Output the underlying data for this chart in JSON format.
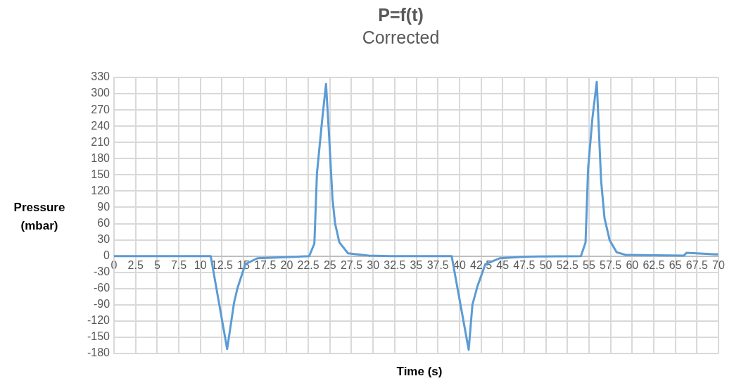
{
  "chart_data": {
    "type": "line",
    "title": "P=f(t)",
    "subtitle": "Corrected",
    "xlabel": "Time (s)",
    "ylabel": "Pressure (mbar)",
    "xlim": [
      0,
      70
    ],
    "xticks": [
      0,
      2.5,
      5,
      7.5,
      10,
      12.5,
      15,
      17.5,
      20,
      22.5,
      25,
      27.5,
      30,
      32.5,
      35,
      37.5,
      40,
      42.5,
      45,
      47.5,
      50,
      52.5,
      55,
      57.5,
      60,
      62.5,
      65,
      67.5,
      70
    ],
    "ylim": [
      -180,
      330
    ],
    "yticks": [
      -180,
      -150,
      -120,
      -90,
      -60,
      -30,
      0,
      30,
      60,
      90,
      120,
      150,
      180,
      210,
      240,
      270,
      300,
      330
    ],
    "grid": true,
    "legend": false,
    "marker": "none",
    "line_style": "solid",
    "series": [
      {
        "color": "#5b9bd5",
        "x": [
          0,
          11.2,
          13.1,
          13.9,
          14.3,
          15.2,
          16.6,
          19.8,
          22.6,
          23.2,
          23.5,
          24.1,
          24.55,
          24.9,
          25.3,
          25.6,
          26.1,
          27.1,
          29.5,
          32,
          39.1,
          41.07,
          41.5,
          42.1,
          43.0,
          44.7,
          47.6,
          54.06,
          54.6,
          54.9,
          55.4,
          55.9,
          56.4,
          56.8,
          57.4,
          58.2,
          59.3,
          66.0,
          66.3,
          69.95
        ],
        "values": [
          0,
          0,
          -172,
          -86,
          -59,
          -15,
          -4,
          -2,
          0,
          23,
          153,
          251,
          318,
          224,
          105,
          60,
          25,
          5,
          1,
          0,
          0,
          -173,
          -90,
          -55,
          -15,
          -4,
          -1,
          0,
          25,
          162,
          255,
          322,
          140,
          70,
          29,
          7,
          2,
          1,
          6,
          3
        ]
      }
    ]
  }
}
